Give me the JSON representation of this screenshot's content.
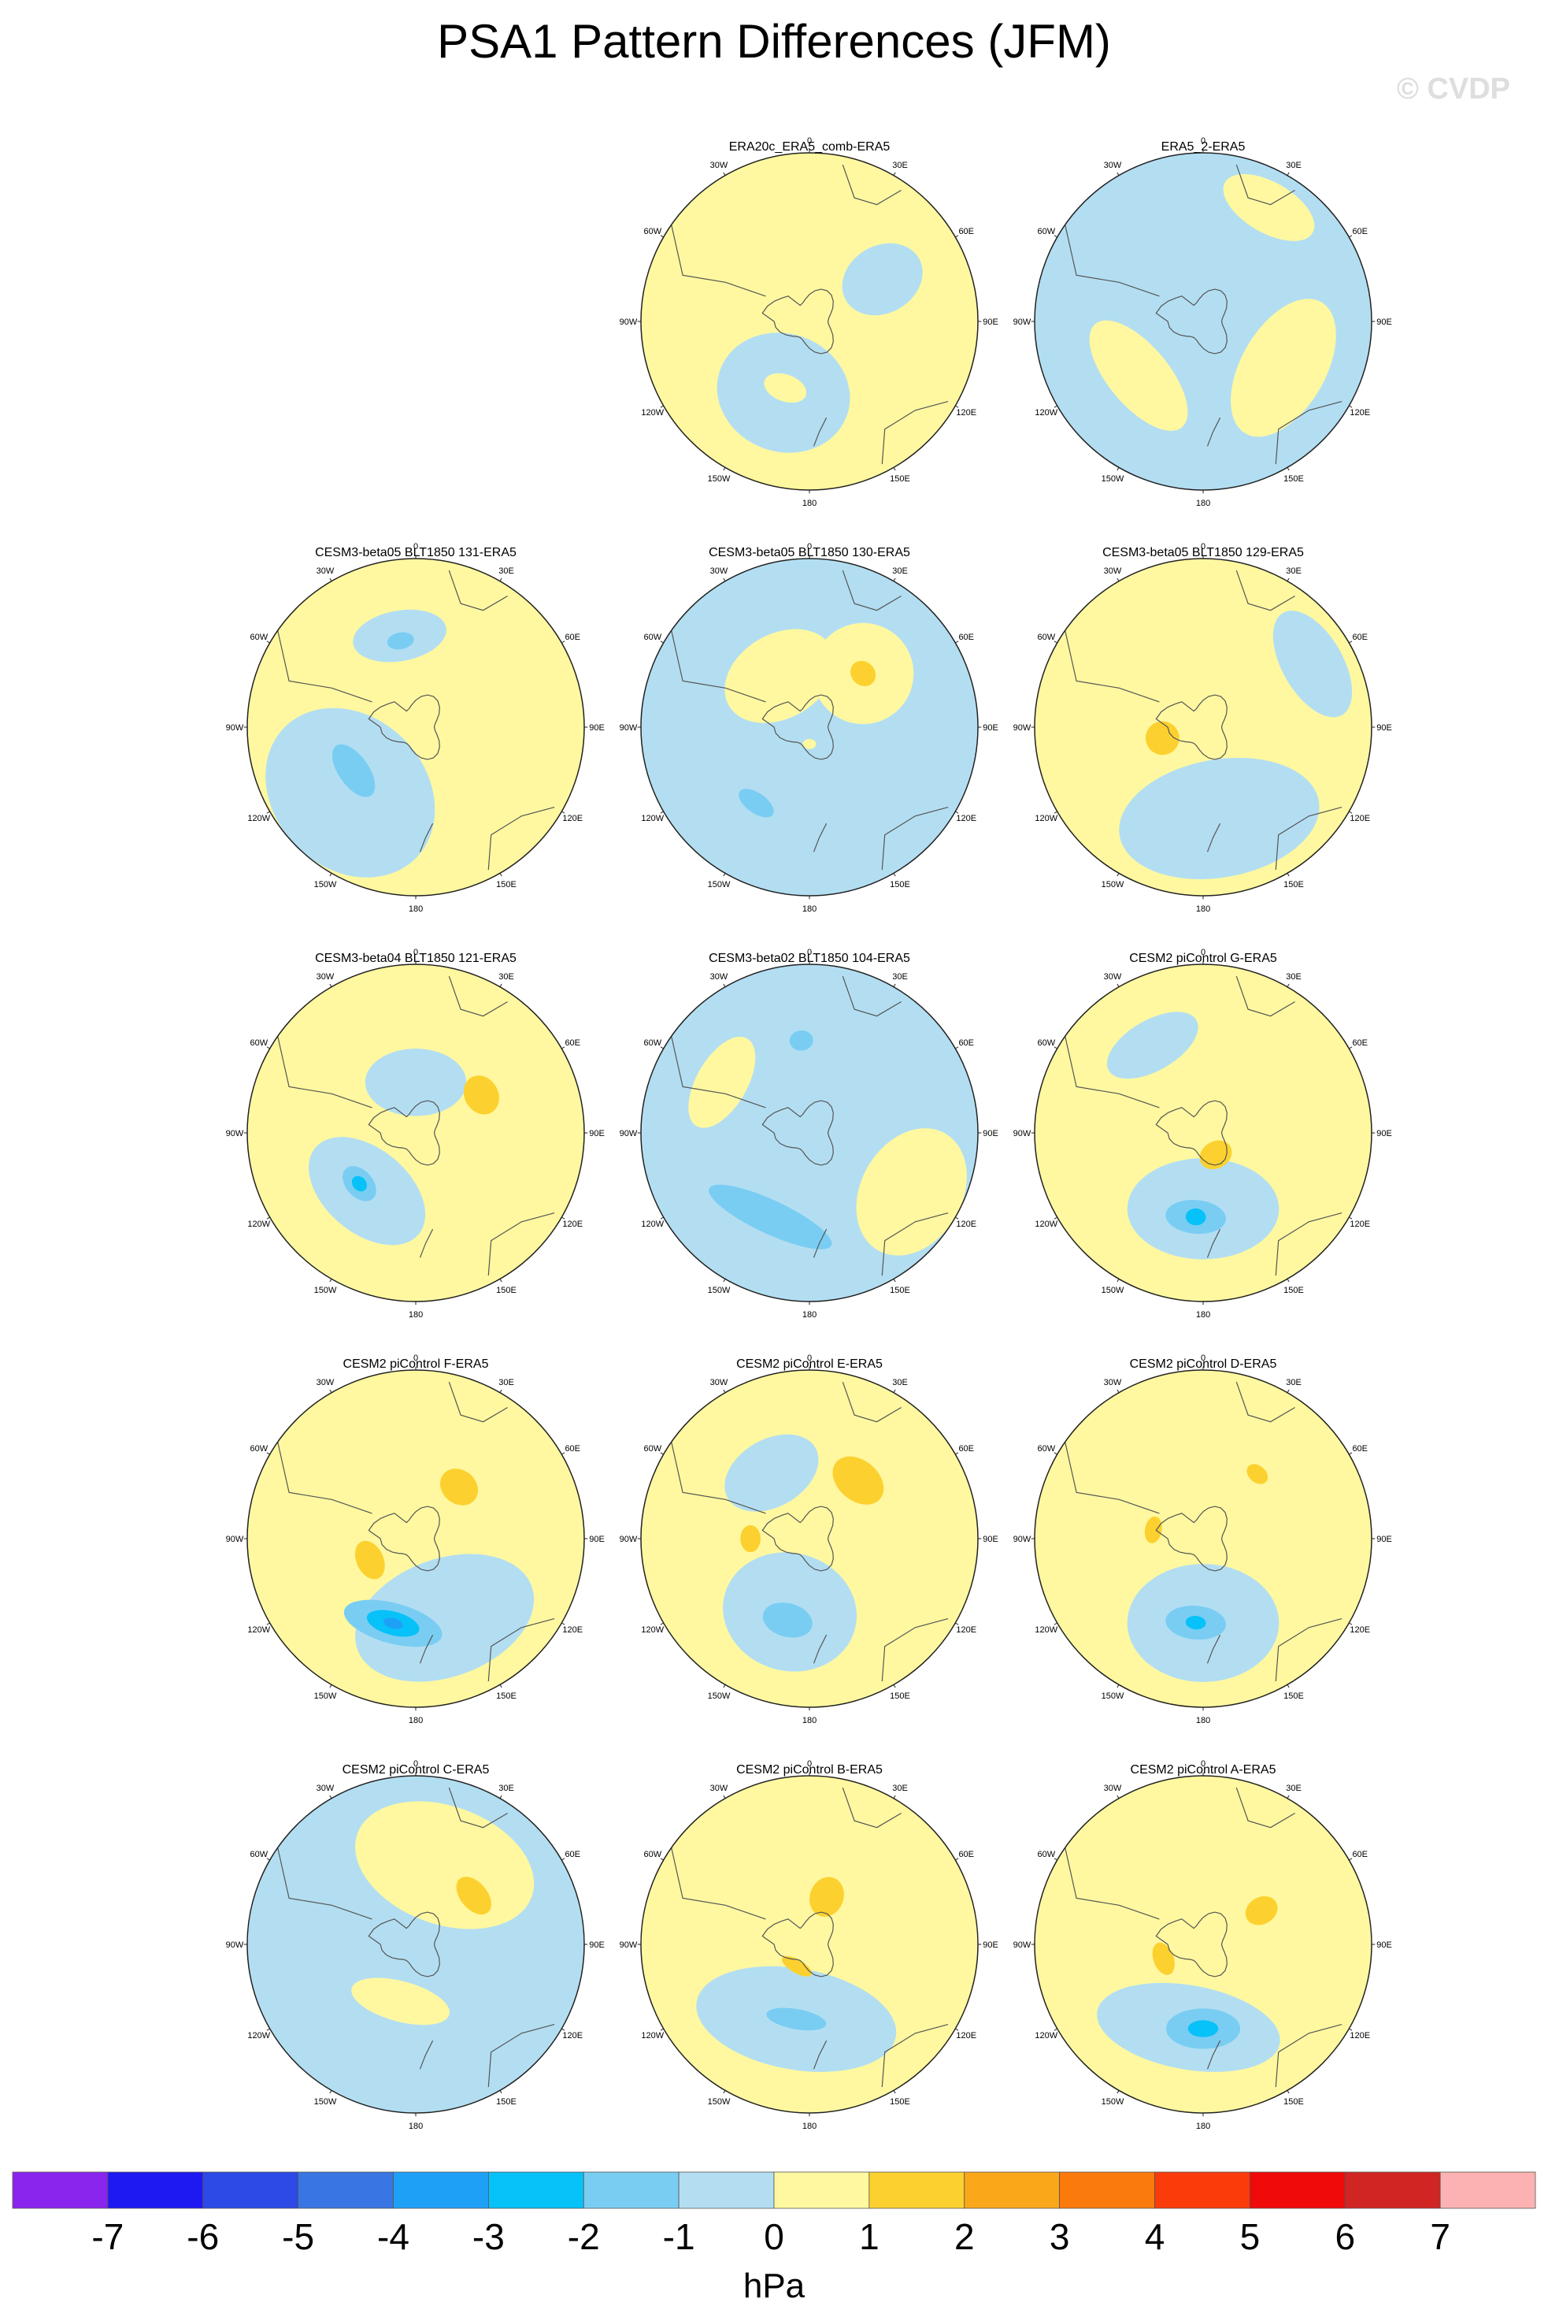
{
  "figure": {
    "title": "PSA1 Pattern Differences (JFM)",
    "watermark": "© CVDP"
  },
  "chart_data": {
    "type": "heatmap",
    "projection": "south-polar-stereographic",
    "units": "hPa",
    "colorbar": {
      "levels": [
        -7,
        -6,
        -5,
        -4,
        -3,
        -2,
        -1,
        0,
        1,
        2,
        3,
        4,
        5,
        6,
        7
      ],
      "tick_labels": [
        "-7",
        "-6",
        "-5",
        "-4",
        "-3",
        "-2",
        "-1",
        "0",
        "1",
        "2",
        "3",
        "4",
        "5",
        "6",
        "7"
      ],
      "colors": [
        "#8a25ee",
        "#1e18f2",
        "#2d49e6",
        "#3a76e3",
        "#1fa0f7",
        "#07c2f8",
        "#7acdf2",
        "#b3def2",
        "#fff8a0",
        "#fcd12f",
        "#fba71a",
        "#fb7a0c",
        "#fb3b09",
        "#f00a09",
        "#d02522",
        "#fcb2b2"
      ],
      "placement": "bottom"
    },
    "longitude_labels": [
      "0",
      "30E",
      "60E",
      "90E",
      "120E",
      "150E",
      "180",
      "150W",
      "120W",
      "90W",
      "60W",
      "30W"
    ],
    "panels": [
      {
        "name": "ERA20c_ERA5_comb-ERA5",
        "row": 0,
        "col": 1,
        "background": 1,
        "features": [
          {
            "level": -1,
            "lon": 200,
            "r": 0.45,
            "a": 0.4,
            "b": 0.35
          },
          {
            "level": -1,
            "lon": 60,
            "r": 0.5,
            "a": 0.2,
            "b": 0.25
          },
          {
            "level": 1,
            "lon": 200,
            "r": 0.42,
            "a": 0.13,
            "b": 0.08
          }
        ]
      },
      {
        "name": "ERA5_2-ERA5",
        "row": 0,
        "col": 2,
        "background": -1,
        "features": [
          {
            "level": 1,
            "lon": 120,
            "r": 0.55,
            "a": 0.45,
            "b": 0.25
          },
          {
            "level": 1,
            "lon": 30,
            "r": 0.78,
            "a": 0.3,
            "b": 0.15
          },
          {
            "level": 1,
            "lon": 230,
            "r": 0.5,
            "a": 0.4,
            "b": 0.18
          }
        ]
      },
      {
        "name": "CESM3-beta05 BLT1850 131-ERA5",
        "row": 1,
        "col": 0,
        "background": 1,
        "features": [
          {
            "level": -1,
            "lon": 225,
            "r": 0.55,
            "a": 0.55,
            "b": 0.45
          },
          {
            "level": -2,
            "lon": 235,
            "r": 0.45,
            "a": 0.18,
            "b": 0.09
          },
          {
            "level": -1,
            "lon": 350,
            "r": 0.55,
            "a": 0.28,
            "b": 0.15
          },
          {
            "level": -2,
            "lon": 350,
            "r": 0.52,
            "a": 0.08,
            "b": 0.05
          }
        ]
      },
      {
        "name": "CESM3-beta05 BLT1850 130-ERA5",
        "row": 1,
        "col": 1,
        "background": -1,
        "features": [
          {
            "level": 1,
            "lon": 330,
            "r": 0.35,
            "a": 0.35,
            "b": 0.25
          },
          {
            "level": 1,
            "lon": 45,
            "r": 0.45,
            "a": 0.3,
            "b": 0.3
          },
          {
            "level": 2,
            "lon": 45,
            "r": 0.45,
            "a": 0.08,
            "b": 0.07
          },
          {
            "level": -2,
            "lon": 215,
            "r": 0.55,
            "a": 0.12,
            "b": 0.06
          },
          {
            "level": 1,
            "lon": 180,
            "r": 0.1,
            "a": 0.04,
            "b": 0.03
          }
        ]
      },
      {
        "name": "CESM3-beta05 BLT1850 129-ERA5",
        "row": 1,
        "col": 2,
        "background": 1,
        "features": [
          {
            "level": -1,
            "lon": 170,
            "r": 0.55,
            "a": 0.6,
            "b": 0.35
          },
          {
            "level": -1,
            "lon": 60,
            "r": 0.75,
            "a": 0.35,
            "b": 0.18
          },
          {
            "level": 2,
            "lon": 255,
            "r": 0.25,
            "a": 0.1,
            "b": 0.1
          }
        ]
      },
      {
        "name": "CESM3-beta04 BLT1850 121-ERA5",
        "row": 2,
        "col": 0,
        "background": 1,
        "features": [
          {
            "level": -1,
            "lon": 220,
            "r": 0.45,
            "a": 0.4,
            "b": 0.25
          },
          {
            "level": -2,
            "lon": 228,
            "r": 0.45,
            "a": 0.12,
            "b": 0.08
          },
          {
            "level": -3,
            "lon": 228,
            "r": 0.45,
            "a": 0.05,
            "b": 0.04
          },
          {
            "level": -1,
            "lon": 0,
            "r": 0.3,
            "a": 0.3,
            "b": 0.2
          },
          {
            "level": 2,
            "lon": 60,
            "r": 0.45,
            "a": 0.12,
            "b": 0.1
          }
        ]
      },
      {
        "name": "CESM3-beta02 BLT1850 104-ERA5",
        "row": 2,
        "col": 1,
        "background": -1,
        "features": [
          {
            "level": 1,
            "lon": 120,
            "r": 0.7,
            "a": 0.4,
            "b": 0.3
          },
          {
            "level": -2,
            "lon": 205,
            "r": 0.55,
            "a": 0.4,
            "b": 0.1
          },
          {
            "level": 1,
            "lon": 300,
            "r": 0.6,
            "a": 0.3,
            "b": 0.15
          },
          {
            "level": -2,
            "lon": 355,
            "r": 0.55,
            "a": 0.07,
            "b": 0.06
          }
        ]
      },
      {
        "name": "CESM2 piControl G-ERA5",
        "row": 2,
        "col": 2,
        "background": 1,
        "features": [
          {
            "level": -1,
            "lon": 180,
            "r": 0.45,
            "a": 0.45,
            "b": 0.3
          },
          {
            "level": -2,
            "lon": 185,
            "r": 0.5,
            "a": 0.18,
            "b": 0.1
          },
          {
            "level": -3,
            "lon": 185,
            "r": 0.5,
            "a": 0.06,
            "b": 0.05
          },
          {
            "level": 2,
            "lon": 150,
            "r": 0.15,
            "a": 0.1,
            "b": 0.08
          },
          {
            "level": -1,
            "lon": 330,
            "r": 0.6,
            "a": 0.3,
            "b": 0.15
          }
        ]
      },
      {
        "name": "CESM2 piControl F-ERA5",
        "row": 3,
        "col": 0,
        "background": 1,
        "features": [
          {
            "level": -1,
            "lon": 160,
            "r": 0.5,
            "a": 0.55,
            "b": 0.35
          },
          {
            "level": -2,
            "lon": 195,
            "r": 0.52,
            "a": 0.3,
            "b": 0.12
          },
          {
            "level": -3,
            "lon": 195,
            "r": 0.52,
            "a": 0.16,
            "b": 0.07
          },
          {
            "level": -4,
            "lon": 195,
            "r": 0.52,
            "a": 0.06,
            "b": 0.03
          },
          {
            "level": 2,
            "lon": 40,
            "r": 0.4,
            "a": 0.12,
            "b": 0.1
          },
          {
            "level": 2,
            "lon": 245,
            "r": 0.3,
            "a": 0.12,
            "b": 0.08
          }
        ]
      },
      {
        "name": "CESM2 piControl E-ERA5",
        "row": 3,
        "col": 1,
        "background": 1,
        "features": [
          {
            "level": -1,
            "lon": 195,
            "r": 0.45,
            "a": 0.4,
            "b": 0.35
          },
          {
            "level": -2,
            "lon": 195,
            "r": 0.5,
            "a": 0.15,
            "b": 0.1
          },
          {
            "level": -1,
            "lon": 330,
            "r": 0.45,
            "a": 0.3,
            "b": 0.2
          },
          {
            "level": 2,
            "lon": 40,
            "r": 0.45,
            "a": 0.17,
            "b": 0.12
          },
          {
            "level": 2,
            "lon": 270,
            "r": 0.35,
            "a": 0.08,
            "b": 0.06
          }
        ]
      },
      {
        "name": "CESM2 piControl D-ERA5",
        "row": 3,
        "col": 2,
        "background": 1,
        "features": [
          {
            "level": -1,
            "lon": 180,
            "r": 0.5,
            "a": 0.45,
            "b": 0.35
          },
          {
            "level": -2,
            "lon": 185,
            "r": 0.5,
            "a": 0.18,
            "b": 0.1
          },
          {
            "level": -3,
            "lon": 185,
            "r": 0.5,
            "a": 0.06,
            "b": 0.04
          },
          {
            "level": 2,
            "lon": 40,
            "r": 0.5,
            "a": 0.07,
            "b": 0.05
          },
          {
            "level": 2,
            "lon": 280,
            "r": 0.3,
            "a": 0.08,
            "b": 0.05
          }
        ]
      },
      {
        "name": "CESM2 piControl C-ERA5",
        "row": 4,
        "col": 0,
        "background": -1,
        "features": [
          {
            "level": 1,
            "lon": 20,
            "r": 0.5,
            "a": 0.55,
            "b": 0.35
          },
          {
            "level": 2,
            "lon": 50,
            "r": 0.45,
            "a": 0.13,
            "b": 0.08
          },
          {
            "level": 1,
            "lon": 195,
            "r": 0.35,
            "a": 0.3,
            "b": 0.12
          }
        ]
      },
      {
        "name": "CESM2 piControl B-ERA5",
        "row": 4,
        "col": 1,
        "background": 1,
        "features": [
          {
            "level": -1,
            "lon": 190,
            "r": 0.45,
            "a": 0.6,
            "b": 0.3
          },
          {
            "level": -2,
            "lon": 190,
            "r": 0.45,
            "a": 0.18,
            "b": 0.06
          },
          {
            "level": 2,
            "lon": 20,
            "r": 0.3,
            "a": 0.1,
            "b": 0.12
          },
          {
            "level": 2,
            "lon": 210,
            "r": 0.15,
            "a": 0.1,
            "b": 0.04
          }
        ]
      },
      {
        "name": "CESM2 piControl A-ERA5",
        "row": 4,
        "col": 2,
        "background": 1,
        "features": [
          {
            "level": -1,
            "lon": 190,
            "r": 0.5,
            "a": 0.55,
            "b": 0.25
          },
          {
            "level": -2,
            "lon": 180,
            "r": 0.5,
            "a": 0.22,
            "b": 0.12
          },
          {
            "level": -3,
            "lon": 180,
            "r": 0.5,
            "a": 0.09,
            "b": 0.05
          },
          {
            "level": 2,
            "lon": 60,
            "r": 0.4,
            "a": 0.08,
            "b": 0.1
          },
          {
            "level": 2,
            "lon": 250,
            "r": 0.25,
            "a": 0.1,
            "b": 0.06
          }
        ]
      }
    ]
  }
}
